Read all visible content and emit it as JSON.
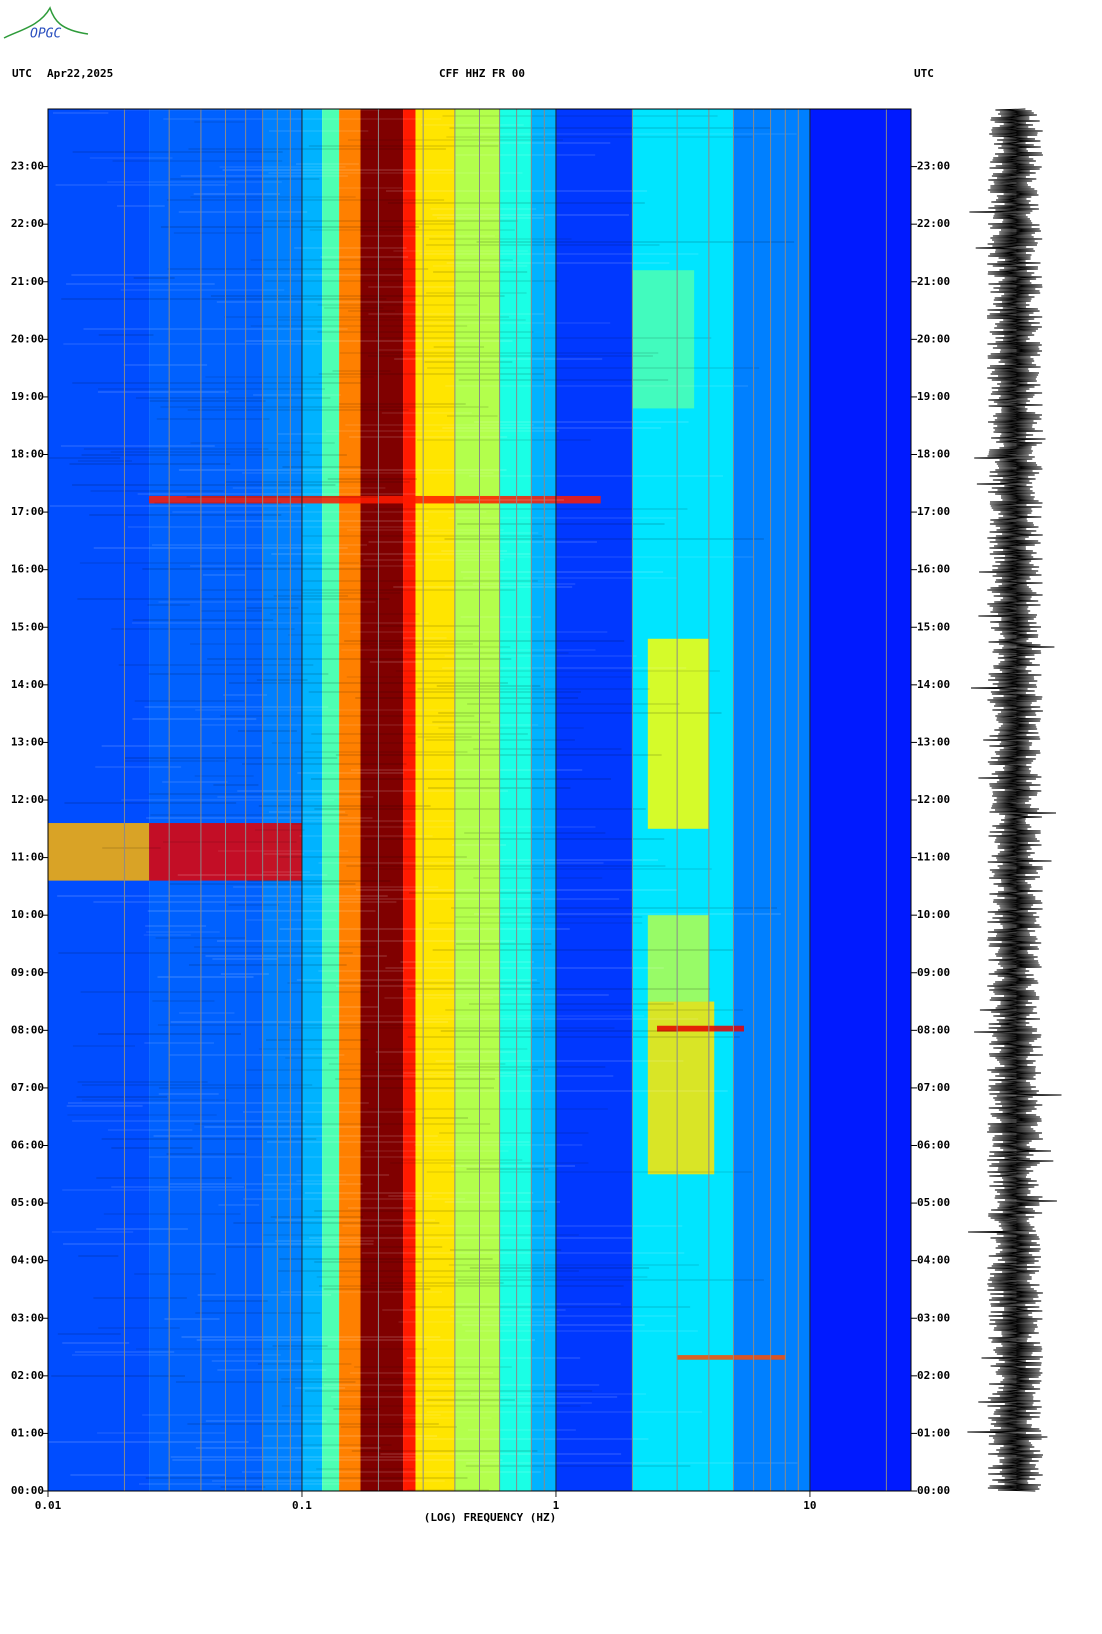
{
  "logo": "OPGC",
  "chart_data": {
    "type": "spectrogram",
    "left_label": "UTC",
    "date": "Apr22,2025",
    "title": "CFF HHZ FR 00",
    "right_label": "UTC",
    "x_label": "(LOG) FREQUENCY (HZ)",
    "xscale": "log",
    "xlim": [
      0.01,
      25
    ],
    "xticks": [
      0.01,
      0.1,
      1,
      10
    ],
    "xgrid": [
      0.02,
      0.03,
      0.04,
      0.05,
      0.06,
      0.07,
      0.08,
      0.09,
      0.2,
      0.3,
      0.4,
      0.5,
      0.6,
      0.7,
      0.8,
      0.9,
      2,
      3,
      4,
      5,
      6,
      7,
      8,
      9,
      20
    ],
    "ylim": [
      0,
      24
    ],
    "yticks": [
      {
        "value": 0,
        "label": "00:00"
      },
      {
        "value": 1,
        "label": "01:00"
      },
      {
        "value": 2,
        "label": "02:00"
      },
      {
        "value": 3,
        "label": "03:00"
      },
      {
        "value": 4,
        "label": "04:00"
      },
      {
        "value": 5,
        "label": "05:00"
      },
      {
        "value": 6,
        "label": "06:00"
      },
      {
        "value": 7,
        "label": "07:00"
      },
      {
        "value": 8,
        "label": "08:00"
      },
      {
        "value": 9,
        "label": "09:00"
      },
      {
        "value": 10,
        "label": "10:00"
      },
      {
        "value": 11,
        "label": "11:00"
      },
      {
        "value": 12,
        "label": "12:00"
      },
      {
        "value": 13,
        "label": "13:00"
      },
      {
        "value": 14,
        "label": "14:00"
      },
      {
        "value": 15,
        "label": "15:00"
      },
      {
        "value": 16,
        "label": "16:00"
      },
      {
        "value": 17,
        "label": "17:00"
      },
      {
        "value": 18,
        "label": "18:00"
      },
      {
        "value": 19,
        "label": "19:00"
      },
      {
        "value": 20,
        "label": "20:00"
      },
      {
        "value": 21,
        "label": "21:00"
      },
      {
        "value": 22,
        "label": "22:00"
      },
      {
        "value": 23,
        "label": "23:00"
      }
    ],
    "colormap": "jet",
    "freq_edges": [
      0.01,
      0.025,
      0.07,
      0.1,
      0.12,
      0.14,
      0.17,
      0.25,
      0.28,
      0.4,
      0.6,
      0.8,
      1.0,
      2.0,
      5.0,
      10,
      25
    ],
    "levels": [
      0.2,
      0.22,
      0.25,
      0.3,
      0.45,
      0.75,
      1.0,
      0.85,
      0.65,
      0.55,
      0.4,
      0.3,
      0.18,
      0.35,
      0.25,
      0.15
    ],
    "events": [
      {
        "t": [
          10.6,
          11.6
        ],
        "f": [
          0.01,
          0.025
        ],
        "level": 0.7
      },
      {
        "t": [
          10.6,
          11.6
        ],
        "f": [
          0.025,
          0.1
        ],
        "level": 0.9
      },
      {
        "t": [
          17.15,
          17.28
        ],
        "f": [
          0.025,
          1.5
        ],
        "level": 0.85
      },
      {
        "t": [
          5.5,
          8.5
        ],
        "f": [
          2.3,
          4.2
        ],
        "level": 0.65
      },
      {
        "t": [
          8.5,
          10
        ],
        "f": [
          2.3,
          4.0
        ],
        "level": 0.55
      },
      {
        "t": [
          11.5,
          14.8
        ],
        "f": [
          2.3,
          4.0
        ],
        "level": 0.62
      },
      {
        "t": [
          7.98,
          8.08
        ],
        "f": [
          2.5,
          5.5
        ],
        "level": 0.9
      },
      {
        "t": [
          2.28,
          2.36
        ],
        "f": [
          3.0,
          8.0
        ],
        "level": 0.8
      },
      {
        "t": [
          18.8,
          21.2
        ],
        "f": [
          2.0,
          3.5
        ],
        "level": 0.45
      }
    ]
  }
}
